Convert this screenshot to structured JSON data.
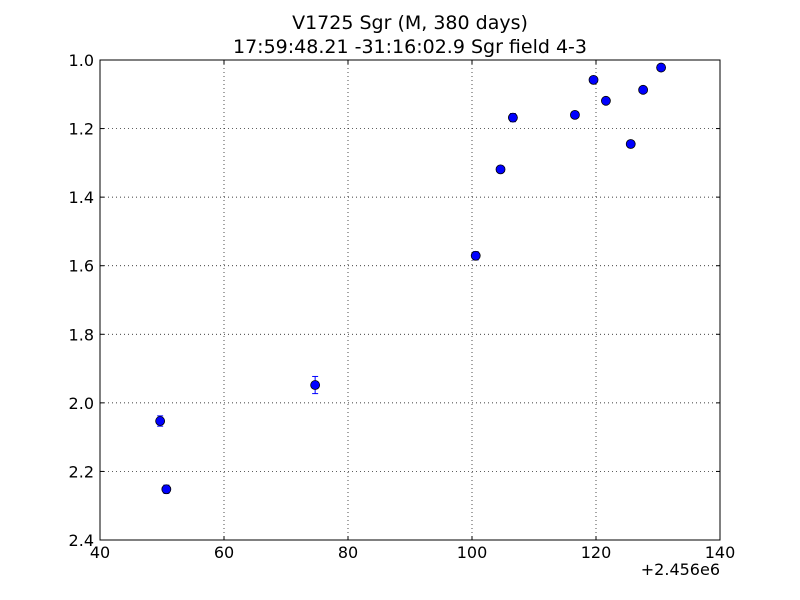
{
  "chart_data": {
    "type": "scatter",
    "title": "V1725 Sgr  (M, 380 days)",
    "subtitle": "17:59:48.21 -31:16:02.9 Sgr field 4-3",
    "xlabel": "",
    "ylabel": "",
    "x_offset_label": "+2.456e6",
    "xlim": [
      40,
      140
    ],
    "ylim": [
      1.0,
      2.4
    ],
    "y_inverted": true,
    "grid": true,
    "x_ticks": [
      40,
      60,
      80,
      100,
      120,
      140
    ],
    "x_tick_labels": [
      "40",
      "60",
      "80",
      "100",
      "120",
      "140"
    ],
    "y_ticks": [
      1.0,
      1.2,
      1.4,
      1.6,
      1.8,
      2.0,
      2.2,
      2.4
    ],
    "y_tick_labels": [
      "1.0",
      "1.2",
      "1.4",
      "1.6",
      "1.8",
      "2.0",
      "2.2",
      "2.4"
    ],
    "marker_color": "#0000ff",
    "points": [
      {
        "x": 49.7,
        "y": 2.053,
        "err": 0.015
      },
      {
        "x": 50.7,
        "y": 2.252,
        "err": 0.012
      },
      {
        "x": 74.7,
        "y": 1.948,
        "err": 0.025
      },
      {
        "x": 100.6,
        "y": 1.571,
        "err": 0.012
      },
      {
        "x": 104.6,
        "y": 1.319,
        "err": 0.01
      },
      {
        "x": 106.6,
        "y": 1.168,
        "err": 0.012
      },
      {
        "x": 116.6,
        "y": 1.16,
        "err": 0.008
      },
      {
        "x": 119.6,
        "y": 1.058,
        "err": 0.008
      },
      {
        "x": 121.6,
        "y": 1.119,
        "err": 0.008
      },
      {
        "x": 125.6,
        "y": 1.245,
        "err": 0.006
      },
      {
        "x": 127.6,
        "y": 1.087,
        "err": 0.006
      },
      {
        "x": 130.5,
        "y": 1.022,
        "err": 0.005
      }
    ]
  }
}
